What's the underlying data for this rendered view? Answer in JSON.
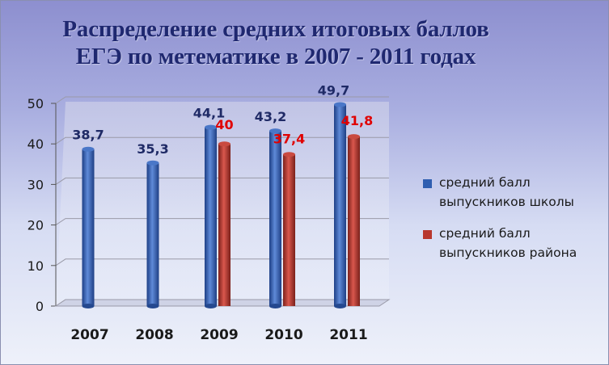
{
  "chart_data": {
    "type": "bar",
    "title": "Распределение средних итоговых баллов ЕГЭ по метематике в 2007 - 2011 годах",
    "title_lines": [
      "Распределение средних итоговых баллов",
      "ЕГЭ по метематике в 2007 - 2011 годах"
    ],
    "categories": [
      "2007",
      "2008",
      "2009",
      "2010",
      "2011"
    ],
    "series": [
      {
        "name": "средний балл выпускников школы",
        "legend_lines": [
          "средний балл",
          "выпускников школы"
        ],
        "values": [
          38.7,
          35.3,
          44.1,
          43.2,
          49.7
        ],
        "labels": [
          "38,7",
          "35,3",
          "44,1",
          "43,2",
          "49,7"
        ],
        "color": "#2f5eb0",
        "label_color": "#1f2a66"
      },
      {
        "name": "средний балл выпускников района",
        "legend_lines": [
          "средний балл",
          "выпускников района"
        ],
        "values": [
          null,
          null,
          40,
          37.4,
          41.8
        ],
        "labels": [
          "",
          "",
          "40",
          "37,4",
          "41,8"
        ],
        "color": "#b8372e",
        "label_color": "#e00000"
      }
    ],
    "yticks": [
      "0",
      "10",
      "20",
      "30",
      "40",
      "50"
    ],
    "ylim": [
      0,
      50
    ],
    "grid": true,
    "legend_position": "right"
  }
}
